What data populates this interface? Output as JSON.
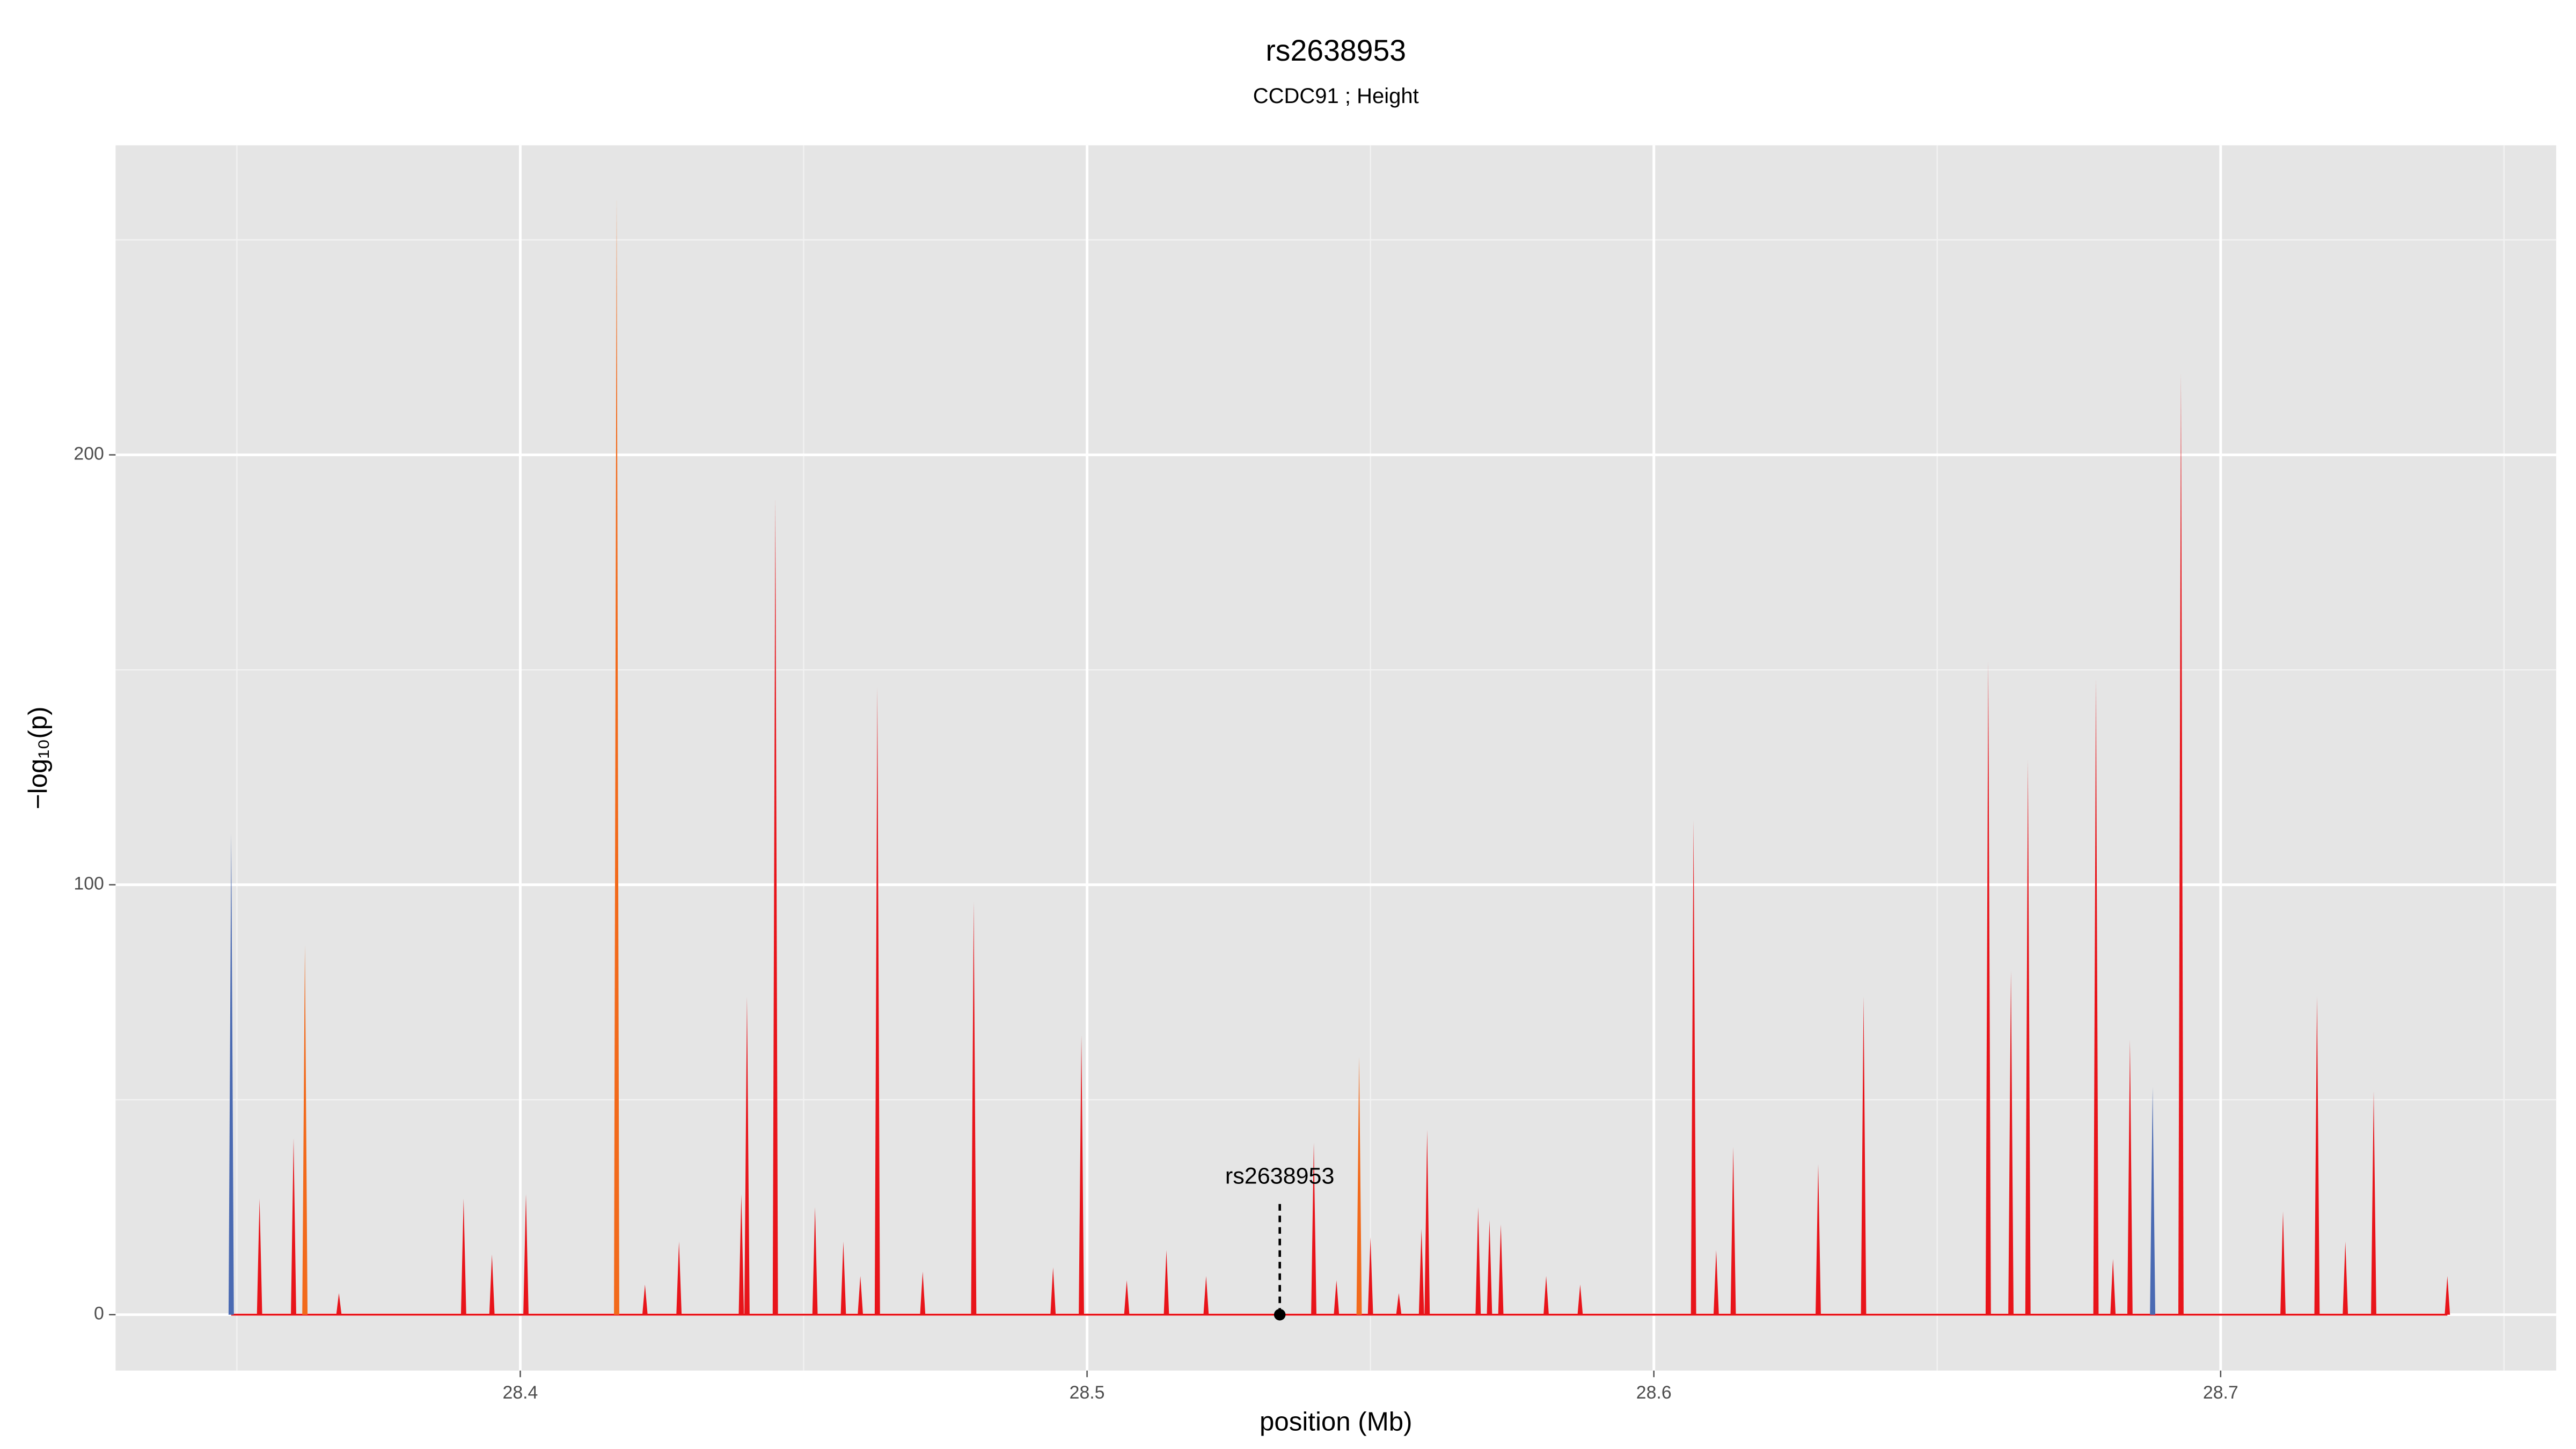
{
  "chart_data": {
    "type": "spike",
    "title": "rs2638953",
    "subtitle": "CCDC91 ; Height",
    "xlabel": "position (Mb)",
    "ylabel": "−log₁₀(p)",
    "xlim": [
      28.3286,
      28.7592
    ],
    "ylim": [
      -13,
      272
    ],
    "xticks": [
      28.4,
      28.5,
      28.6,
      28.7
    ],
    "yticks": [
      0,
      100,
      200
    ],
    "xminor": [
      28.35,
      28.45,
      28.55,
      28.65,
      28.75
    ],
    "yminor": [
      50,
      150,
      250
    ],
    "grid": true,
    "series": [
      {
        "name": "red",
        "color": "#e8141a",
        "x": [
          28.354,
          28.36,
          28.368,
          28.39,
          28.395,
          28.401,
          28.422,
          28.428,
          28.439,
          28.44,
          28.445,
          28.452,
          28.457,
          28.46,
          28.463,
          28.471,
          28.48,
          28.494,
          28.499,
          28.507,
          28.514,
          28.521,
          28.54,
          28.544,
          28.55,
          28.555,
          28.559,
          28.56,
          28.569,
          28.571,
          28.573,
          28.581,
          28.587,
          28.607,
          28.611,
          28.614,
          28.629,
          28.637,
          28.659,
          28.663,
          28.666,
          28.678,
          28.681,
          28.684,
          28.693,
          28.711,
          28.717,
          28.722,
          28.727,
          28.74
        ],
        "values": [
          27,
          41,
          5,
          27,
          14,
          28,
          7,
          17,
          28,
          74,
          190,
          25,
          17,
          9,
          146,
          10,
          96,
          11,
          65,
          8,
          15,
          9,
          40,
          8,
          18,
          5,
          20,
          43,
          25,
          22,
          21,
          9,
          7,
          115,
          15,
          39,
          35,
          74,
          152,
          80,
          129,
          148,
          13,
          64,
          219,
          24,
          74,
          17,
          52,
          9
        ]
      },
      {
        "name": "orange",
        "color": "#f26a1b",
        "x": [
          28.362,
          28.417,
          28.548
        ],
        "values": [
          86,
          260,
          60
        ]
      },
      {
        "name": "blue",
        "color": "#4a6ab3",
        "x": [
          28.349,
          28.688
        ],
        "values": [
          112,
          53
        ]
      }
    ],
    "annotation": {
      "text": "rs2638953",
      "x": 28.534,
      "y": 0
    }
  }
}
